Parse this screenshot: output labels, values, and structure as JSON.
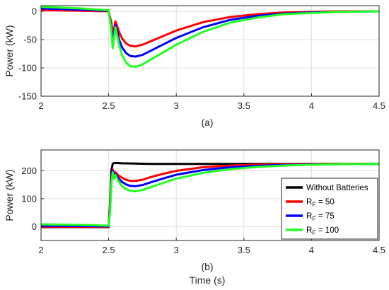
{
  "chart_data": [
    {
      "panel": "a",
      "type": "line",
      "caption": "(a)",
      "title": "",
      "xlabel": "",
      "ylabel": "Power (kW)",
      "xlim": [
        2,
        4.5
      ],
      "ylim": [
        -150,
        10
      ],
      "xticks": [
        2,
        2.5,
        3,
        3.5,
        4,
        4.5
      ],
      "yticks": [
        0,
        -50,
        -100,
        -150
      ],
      "grid": true,
      "series": [
        {
          "name": "R_F = 50",
          "color": "#ff0000",
          "x": [
            2.0,
            2.3,
            2.5,
            2.52,
            2.53,
            2.54,
            2.55,
            2.56,
            2.58,
            2.6,
            2.63,
            2.66,
            2.7,
            2.75,
            2.8,
            2.9,
            3.0,
            3.2,
            3.4,
            3.6,
            3.8,
            4.0,
            4.2,
            4.5
          ],
          "y": [
            2,
            1,
            0,
            -20,
            -42,
            -30,
            -18,
            -24,
            -38,
            -48,
            -57,
            -61,
            -62,
            -59,
            -54,
            -44,
            -34,
            -19,
            -10,
            -5,
            -2,
            -1,
            0,
            0
          ]
        },
        {
          "name": "R_F = 75",
          "color": "#0000ff",
          "x": [
            2.0,
            2.3,
            2.5,
            2.52,
            2.53,
            2.54,
            2.55,
            2.56,
            2.58,
            2.6,
            2.63,
            2.66,
            2.7,
            2.75,
            2.8,
            2.9,
            3.0,
            3.2,
            3.4,
            3.6,
            3.8,
            4.0,
            4.2,
            4.5
          ],
          "y": [
            5,
            3,
            1,
            -30,
            -55,
            -40,
            -24,
            -32,
            -52,
            -64,
            -74,
            -79,
            -80,
            -77,
            -71,
            -59,
            -47,
            -28,
            -15,
            -8,
            -4,
            -2,
            -1,
            0
          ]
        },
        {
          "name": "R_F = 100",
          "color": "#22ff22",
          "x": [
            2.0,
            2.3,
            2.5,
            2.52,
            2.53,
            2.54,
            2.55,
            2.56,
            2.58,
            2.6,
            2.63,
            2.66,
            2.7,
            2.75,
            2.8,
            2.9,
            3.0,
            3.2,
            3.4,
            3.6,
            3.8,
            4.0,
            4.2,
            4.5
          ],
          "y": [
            8,
            5,
            2,
            -35,
            -65,
            -48,
            -28,
            -40,
            -62,
            -78,
            -91,
            -97,
            -98,
            -94,
            -87,
            -73,
            -59,
            -36,
            -20,
            -11,
            -5,
            -3,
            -1,
            0
          ]
        }
      ]
    },
    {
      "panel": "b",
      "type": "line",
      "caption": "(b)",
      "title": "",
      "xlabel": "Time (s)",
      "ylabel": "Power (kW)",
      "xlim": [
        2,
        4.5
      ],
      "ylim": [
        -50,
        275
      ],
      "xticks": [
        2,
        2.5,
        3,
        3.5,
        4,
        4.5
      ],
      "yticks": [
        0,
        100,
        200
      ],
      "grid": true,
      "legend": {
        "position": "right",
        "entries": [
          {
            "text": "Without Batteries",
            "color": "#000000"
          },
          {
            "prefix": "R",
            "subscript": "F",
            "suffix": " = 50",
            "color": "#ff0000"
          },
          {
            "prefix": "R",
            "subscript": "F",
            "suffix": " = 75",
            "color": "#0000ff"
          },
          {
            "prefix": "R",
            "subscript": "F",
            "suffix": " = 100",
            "color": "#22ff22"
          }
        ]
      },
      "series": [
        {
          "name": "Without Batteries",
          "color": "#000000",
          "x": [
            2.0,
            2.5,
            2.51,
            2.52,
            2.53,
            2.54,
            2.56,
            2.6,
            2.7,
            2.8,
            3.0,
            3.5,
            4.0,
            4.5
          ],
          "y": [
            -2,
            -2,
            80,
            200,
            225,
            228,
            228,
            227,
            226,
            225,
            225,
            225,
            225,
            225
          ]
        },
        {
          "name": "R_F = 50",
          "color": "#ff0000",
          "x": [
            2.0,
            2.3,
            2.5,
            2.51,
            2.52,
            2.53,
            2.54,
            2.55,
            2.57,
            2.6,
            2.63,
            2.66,
            2.7,
            2.75,
            2.8,
            2.9,
            3.0,
            3.2,
            3.4,
            3.6,
            3.8,
            4.0,
            4.2,
            4.5
          ],
          "y": [
            0,
            -1,
            -1,
            60,
            170,
            205,
            190,
            195,
            185,
            175,
            168,
            164,
            164,
            168,
            176,
            189,
            200,
            213,
            219,
            222,
            224,
            225,
            225,
            225
          ]
        },
        {
          "name": "R_F = 75",
          "color": "#0000ff",
          "x": [
            2.0,
            2.3,
            2.5,
            2.51,
            2.52,
            2.53,
            2.54,
            2.55,
            2.57,
            2.6,
            2.63,
            2.66,
            2.7,
            2.75,
            2.8,
            2.9,
            3.0,
            3.2,
            3.4,
            3.6,
            3.8,
            4.0,
            4.2,
            4.5
          ],
          "y": [
            3,
            2,
            1,
            55,
            160,
            200,
            180,
            190,
            175,
            160,
            151,
            146,
            145,
            149,
            157,
            172,
            186,
            203,
            213,
            218,
            221,
            223,
            224,
            225
          ]
        },
        {
          "name": "R_F = 100",
          "color": "#22ff22",
          "x": [
            2.0,
            2.3,
            2.5,
            2.51,
            2.52,
            2.53,
            2.54,
            2.55,
            2.57,
            2.6,
            2.63,
            2.66,
            2.7,
            2.75,
            2.8,
            2.9,
            3.0,
            3.2,
            3.4,
            3.6,
            3.8,
            4.0,
            4.2,
            4.5
          ],
          "y": [
            8,
            6,
            3,
            50,
            150,
            195,
            172,
            185,
            165,
            145,
            134,
            128,
            127,
            131,
            140,
            156,
            172,
            193,
            206,
            214,
            219,
            222,
            224,
            225
          ]
        }
      ]
    }
  ]
}
